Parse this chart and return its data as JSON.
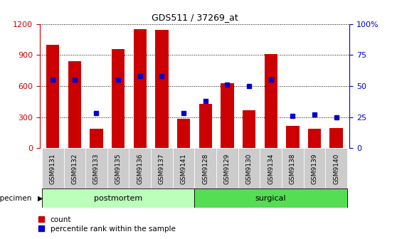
{
  "title": "GDS511 / 37269_at",
  "samples": [
    "GSM9131",
    "GSM9132",
    "GSM9133",
    "GSM9135",
    "GSM9136",
    "GSM9137",
    "GSM9141",
    "GSM9128",
    "GSM9129",
    "GSM9130",
    "GSM9134",
    "GSM9138",
    "GSM9139",
    "GSM9140"
  ],
  "counts": [
    1000,
    840,
    185,
    960,
    1150,
    1145,
    285,
    430,
    630,
    365,
    910,
    215,
    190,
    195
  ],
  "percentiles": [
    55,
    55,
    28,
    55,
    58,
    58,
    28,
    38,
    51,
    50,
    55,
    26,
    27,
    25
  ],
  "n_postmortem": 7,
  "bar_color": "#cc0000",
  "dot_color": "#0000cc",
  "postmortem_bg": "#bbffbb",
  "surgical_bg": "#55dd55",
  "tick_label_bg": "#cccccc",
  "left_ylim": [
    0,
    1200
  ],
  "right_ylim": [
    0,
    100
  ],
  "left_yticks": [
    0,
    300,
    600,
    900,
    1200
  ],
  "right_yticks": [
    0,
    25,
    50,
    75,
    100
  ],
  "right_yticklabels": [
    "0",
    "25",
    "50",
    "75",
    "100%"
  ],
  "legend_count_label": "count",
  "legend_percentile_label": "percentile rank within the sample",
  "specimen_label": "specimen",
  "figsize": [
    5.58,
    3.36
  ],
  "dpi": 100
}
